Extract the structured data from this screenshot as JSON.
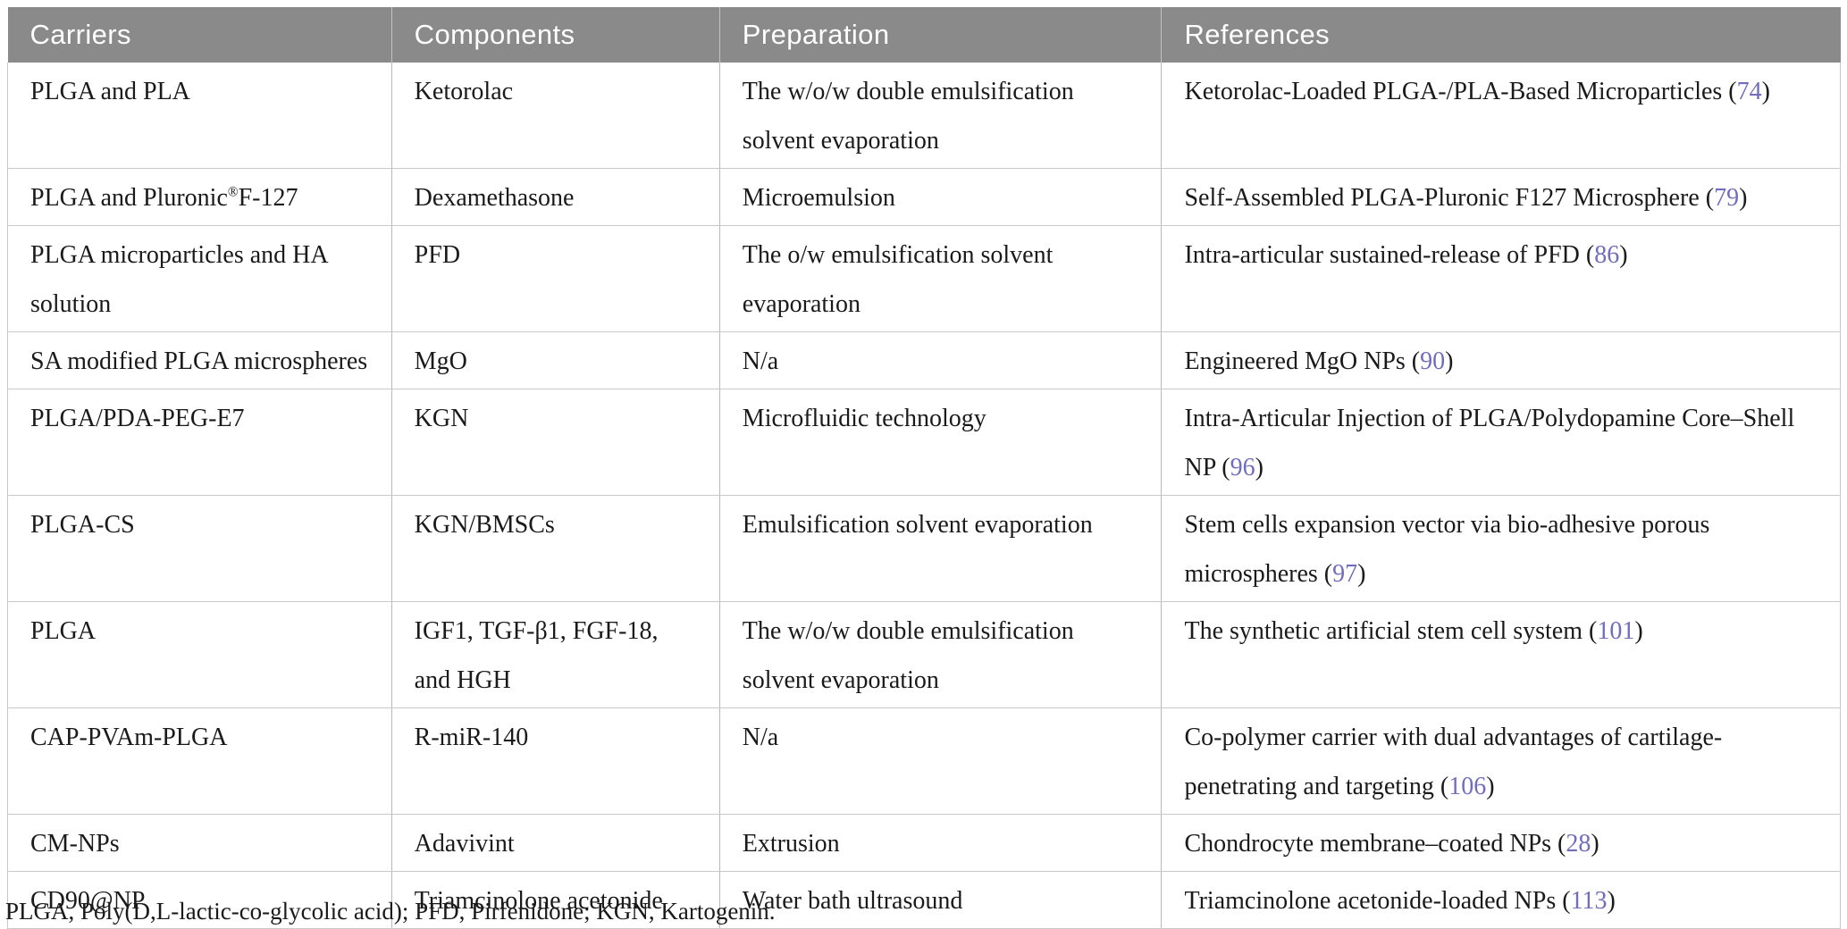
{
  "colors": {
    "header_bg": "#8a8a8a",
    "header_text": "#ffffff",
    "body_text": "#1a1a1a",
    "citation_accent": "#706dbe",
    "row_border": "#c9c9c9"
  },
  "table": {
    "headers": [
      {
        "label": "Carriers"
      },
      {
        "label": "Components"
      },
      {
        "label": "Preparation"
      },
      {
        "label": "References"
      }
    ],
    "rows": [
      {
        "carrier": "PLGA and PLA",
        "component": "Ketorolac",
        "preparation": "The w/o/w double emulsification solvent evaporation",
        "reference": {
          "text": "Ketorolac-Loaded PLGA-/PLA-Based Microparticles",
          "citation": "74"
        }
      },
      {
        "carrier": "PLGA and Pluronic®F-127",
        "component": "Dexamethasone",
        "preparation": "Microemulsion",
        "reference": {
          "text": "Self-Assembled PLGA-Pluronic F127 Microsphere",
          "citation": "79"
        }
      },
      {
        "carrier": "PLGA microparticles and HA solution",
        "component": "PFD",
        "preparation": "The o/w emulsification solvent evaporation",
        "reference": {
          "text": "Intra-articular sustained-release of PFD",
          "citation": "86"
        }
      },
      {
        "carrier": "SA modified PLGA microspheres",
        "component": "MgO",
        "preparation": "N/a",
        "reference": {
          "text": "Engineered MgO NPs",
          "citation": "90"
        }
      },
      {
        "carrier": "PLGA/PDA-PEG-E7",
        "component": "KGN",
        "preparation": "Microfluidic technology",
        "reference": {
          "text": "Intra-Articular Injection of PLGA/Polydopamine Core–Shell NP",
          "citation": "96"
        }
      },
      {
        "carrier": "PLGA-CS",
        "component": "KGN/BMSCs",
        "preparation": "Emulsification solvent evaporation",
        "reference": {
          "text": "Stem cells expansion vector via bio-adhesive porous microspheres",
          "citation": "97"
        }
      },
      {
        "carrier": "PLGA",
        "component": "IGF1, TGF-β1, FGF-18, and HGH",
        "preparation": "The w/o/w double emulsification solvent evaporation",
        "reference": {
          "text": "The synthetic artificial stem cell system",
          "citation": "101"
        }
      },
      {
        "carrier": "CAP-PVAm-PLGA",
        "component": "R-miR-140",
        "preparation": "N/a",
        "reference": {
          "text": "Co-polymer carrier with dual advantages of cartilage-penetrating and targeting",
          "citation": "106"
        }
      },
      {
        "carrier": "CM-NPs",
        "component": "Adavivint",
        "preparation": "Extrusion",
        "reference": {
          "text": "Chondrocyte membrane–coated NPs",
          "citation": "28"
        }
      },
      {
        "carrier": "CD90@NP",
        "component": "Triamcinolone acetonide",
        "preparation": "Water bath ultrasound",
        "reference": {
          "text": "Triamcinolone acetonide-loaded NPs",
          "citation": "113"
        }
      }
    ]
  },
  "footnote": "PLGA, Poly(D,L-lactic-co-glycolic acid); PFD, Pirfenidone; KGN, Kartogenin."
}
